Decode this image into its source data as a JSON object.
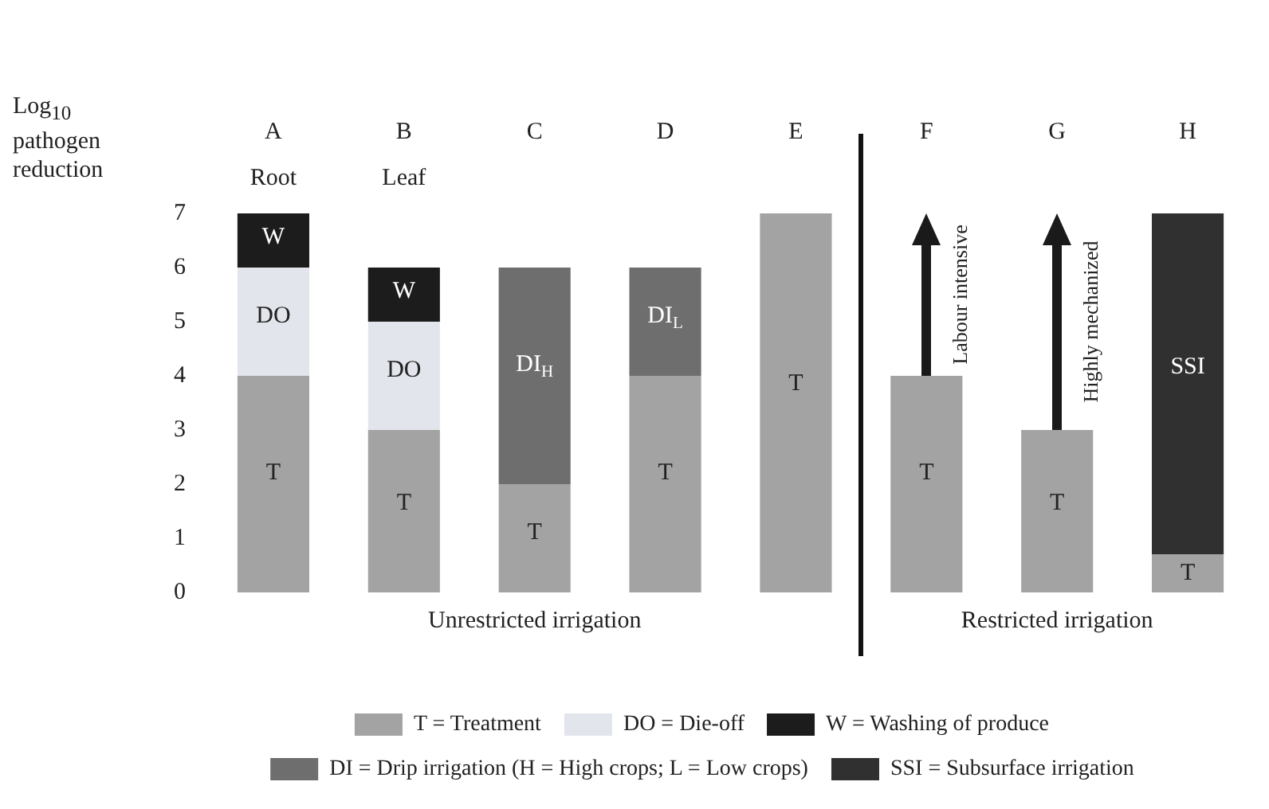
{
  "chart_data": {
    "type": "bar",
    "stacked": true,
    "ylabel": "Log$_{10}$ pathogen reduction",
    "categories": [
      "A",
      "B",
      "C",
      "D",
      "E",
      "F",
      "G",
      "H"
    ],
    "series": [
      {
        "name": "T = Treatment",
        "color": "#a3a3a3",
        "values": [
          4,
          3,
          2,
          4,
          7,
          4,
          3,
          0.7
        ],
        "value_labels": [
          "T",
          "T",
          "T",
          "T",
          "T",
          "T",
          "T",
          "T"
        ]
      },
      {
        "name": "DO = Die-off",
        "color": "#e3e5ec",
        "values": [
          2,
          2,
          null,
          null,
          null,
          null,
          null,
          null
        ],
        "value_labels": [
          "DO",
          "DO",
          null,
          null,
          null,
          null,
          null,
          null
        ]
      },
      {
        "name": "W = Washing of produce",
        "color": "#1c1c1c",
        "values": [
          1,
          1,
          null,
          null,
          null,
          null,
          null,
          null
        ],
        "value_labels": [
          "W",
          "W",
          null,
          null,
          null,
          null,
          null,
          null
        ]
      },
      {
        "name": "DI = Drip irrigation (H = High crops; L = Low crops)",
        "color": "#6e6e6e",
        "values": [
          null,
          null,
          4,
          2,
          null,
          null,
          null,
          null
        ],
        "value_labels": [
          null,
          null,
          "DI$_{H}$",
          "DI$_{L}$",
          null,
          null,
          null,
          null
        ]
      },
      {
        "name": "SSI = Subsurface irrigation",
        "color": "#303030",
        "values": [
          null,
          null,
          null,
          null,
          null,
          null,
          null,
          6.3
        ],
        "value_labels": [
          null,
          null,
          null,
          null,
          null,
          null,
          null,
          "SSI"
        ]
      }
    ],
    "ylim": [
      0,
      7
    ],
    "yticks": [
      0,
      1,
      2,
      3,
      4,
      5,
      6,
      7
    ],
    "grid": false,
    "legend": "bottom",
    "annotations": [
      "Root",
      "Leaf",
      "Unrestricted irrigation",
      "Restricted irrigation",
      "Labour intensive",
      "Highly mechanized"
    ]
  }
}
